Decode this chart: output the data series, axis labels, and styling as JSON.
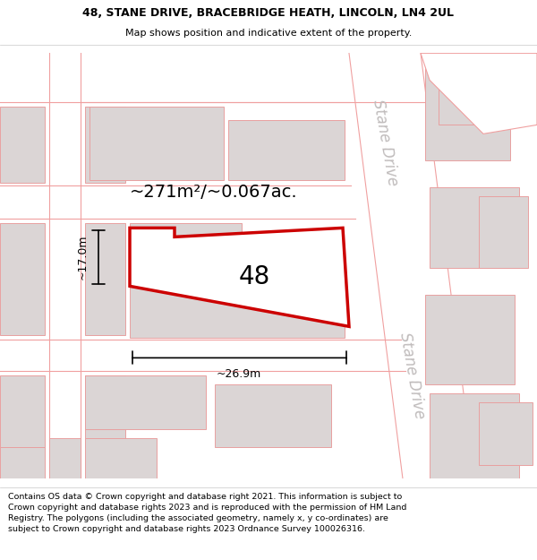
{
  "title_line1": "48, STANE DRIVE, BRACEBRIDGE HEATH, LINCOLN, LN4 2UL",
  "title_line2": "Map shows position and indicative extent of the property.",
  "footer_text": "Contains OS data © Crown copyright and database right 2021. This information is subject to Crown copyright and database rights 2023 and is reproduced with the permission of HM Land Registry. The polygons (including the associated geometry, namely x, y co-ordinates) are subject to Crown copyright and database rights 2023 Ordnance Survey 100026316.",
  "map_bg": "#f0eded",
  "road_bg": "#ffffff",
  "building_fc": "#dbd5d5",
  "building_ec": "#e8a0a0",
  "highlight_color": "#cc0000",
  "road_label": "Stane Drive",
  "plot_label": "48",
  "area_text": "~271m²/~0.067ac.",
  "dim_width": "~26.9m",
  "dim_height": "~17.0m",
  "title_fontsize": 9.0,
  "subtitle_fontsize": 8.0,
  "footer_fontsize": 6.8,
  "label_fontsize": 20,
  "area_fontsize": 14,
  "dim_fontsize": 9,
  "road_label_fontsize": 12,
  "road_label_color": "#c0bcbc"
}
